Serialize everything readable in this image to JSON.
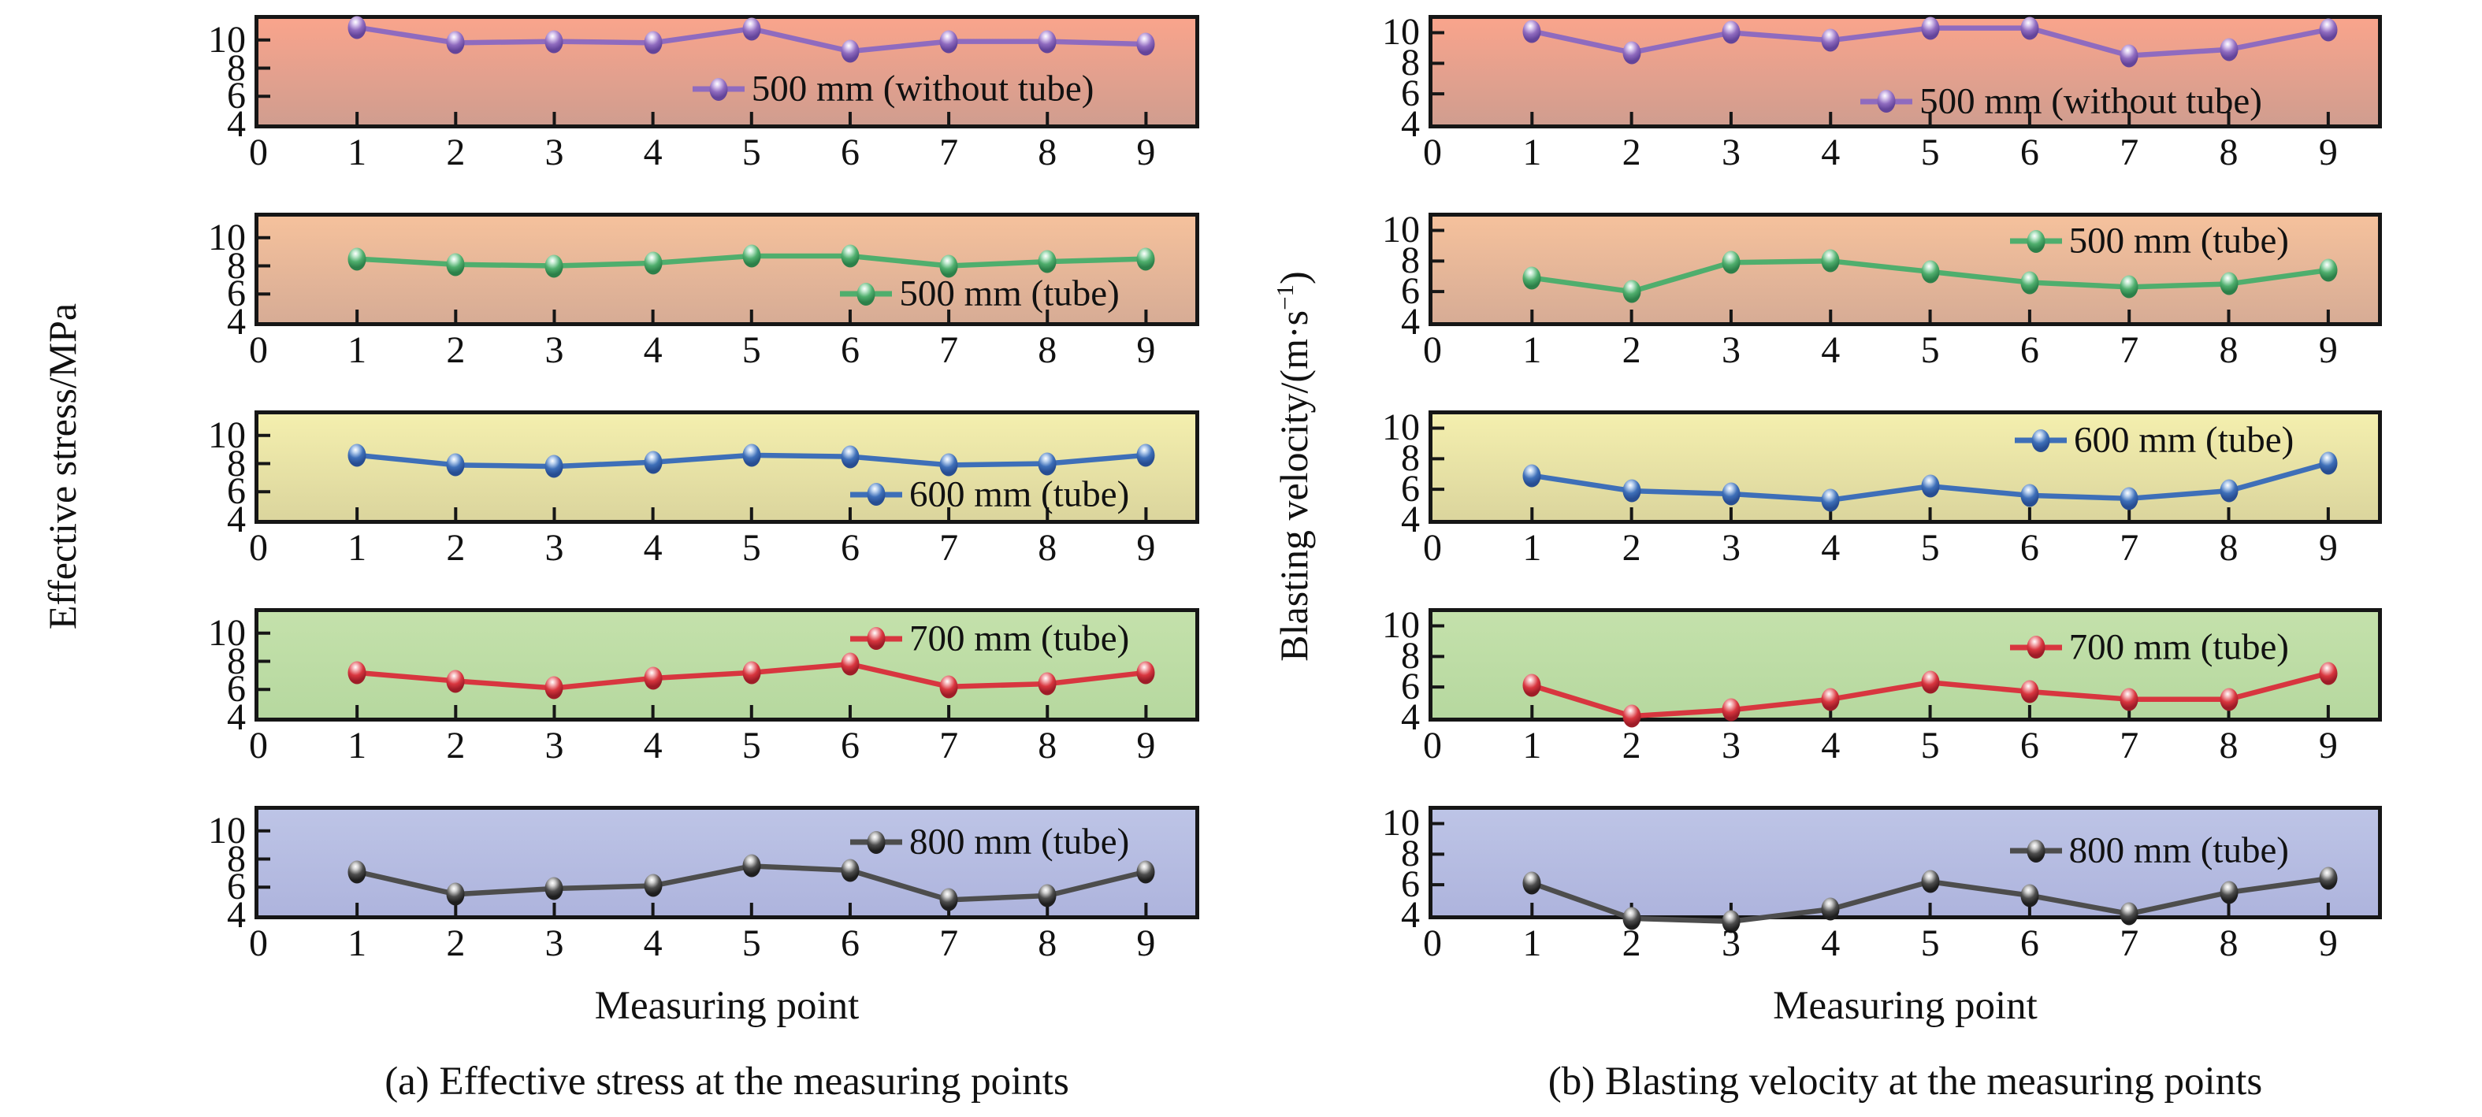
{
  "figure": {
    "columns": [
      {
        "key": "a",
        "ylabel_pre": "Effective stress/MPa",
        "ylabel_sup": "",
        "ylabel_post": "",
        "xlabel": "Measuring point",
        "caption": "(a) Effective stress at the measuring points"
      },
      {
        "key": "b",
        "ylabel_pre": "Blasting velocity/(m·s",
        "ylabel_sup": "−1",
        "ylabel_post": ")",
        "xlabel": "Measuring point",
        "caption": "(b) Blasting velocity at the measuring points"
      }
    ]
  },
  "chart_data": [
    {
      "panel": "a1",
      "type": "line",
      "legend": "500 mm (without tube)",
      "line_color": "#8f6bbf",
      "marker_light": "#dccbf0",
      "marker_dark": "#63449a",
      "bg_top": "#f9a48c",
      "bg_bottom": "#d09d8f",
      "x": [
        1,
        2,
        3,
        4,
        5,
        6,
        7,
        8,
        9
      ],
      "y": [
        10.9,
        9.8,
        9.9,
        9.8,
        10.8,
        9.2,
        9.9,
        9.9,
        9.7
      ],
      "xlim": [
        0,
        9.5
      ],
      "ylim": [
        4,
        11.5
      ],
      "xticks": [
        0,
        1,
        2,
        3,
        4,
        5,
        6,
        7,
        8,
        9
      ],
      "yticks": [
        4,
        6,
        8,
        10
      ],
      "legend_x": 4.4,
      "legend_y": 6.5,
      "xlabel": "Measuring point",
      "ylabel": "Effective stress/MPa",
      "grid": false
    },
    {
      "panel": "a2",
      "type": "line",
      "legend": "500 mm (tube)",
      "line_color": "#4fae6d",
      "marker_light": "#c2ead0",
      "marker_dark": "#2c8049",
      "bg_top": "#f5c19c",
      "bg_bottom": "#d7ac95",
      "x": [
        1,
        2,
        3,
        4,
        5,
        6,
        7,
        8,
        9
      ],
      "y": [
        8.5,
        8.1,
        8.0,
        8.2,
        8.7,
        8.7,
        8.0,
        8.3,
        8.5
      ],
      "xlim": [
        0,
        9.5
      ],
      "ylim": [
        4,
        11.5
      ],
      "xticks": [
        0,
        1,
        2,
        3,
        4,
        5,
        6,
        7,
        8,
        9
      ],
      "yticks": [
        4,
        6,
        8,
        10
      ],
      "legend_x": 5.9,
      "legend_y": 6.0,
      "xlabel": "Measuring point",
      "ylabel": "Effective stress/MPa",
      "grid": false
    },
    {
      "panel": "a3",
      "type": "line",
      "legend": "600 mm (tube)",
      "line_color": "#3e6fb8",
      "marker_light": "#bcd3f0",
      "marker_dark": "#274d92",
      "bg_top": "#f4efae",
      "bg_bottom": "#dbd59d",
      "x": [
        1,
        2,
        3,
        4,
        5,
        6,
        7,
        8,
        9
      ],
      "y": [
        8.6,
        7.9,
        7.8,
        8.1,
        8.6,
        8.5,
        7.9,
        8.0,
        8.6
      ],
      "xlim": [
        0,
        9.5
      ],
      "ylim": [
        4,
        11.5
      ],
      "xticks": [
        0,
        1,
        2,
        3,
        4,
        5,
        6,
        7,
        8,
        9
      ],
      "yticks": [
        4,
        6,
        8,
        10
      ],
      "legend_x": 6.0,
      "legend_y": 5.8,
      "xlabel": "Measuring point",
      "ylabel": "Effective stress/MPa",
      "grid": false
    },
    {
      "panel": "a4",
      "type": "line",
      "legend": "700 mm (tube)",
      "line_color": "#d8363f",
      "marker_light": "#f6b7ba",
      "marker_dark": "#9e1c27",
      "bg_top": "#c4e1ab",
      "bg_bottom": "#b6d89f",
      "x": [
        1,
        2,
        3,
        4,
        5,
        6,
        7,
        8,
        9
      ],
      "y": [
        7.2,
        6.6,
        6.1,
        6.8,
        7.2,
        7.8,
        6.2,
        6.4,
        7.2
      ],
      "xlim": [
        0,
        9.5
      ],
      "ylim": [
        4,
        11.5
      ],
      "xticks": [
        0,
        1,
        2,
        3,
        4,
        5,
        6,
        7,
        8,
        9
      ],
      "yticks": [
        4,
        6,
        8,
        10
      ],
      "legend_x": 6.0,
      "legend_y": 9.6,
      "xlabel": "Measuring point",
      "ylabel": "Effective stress/MPa",
      "grid": false
    },
    {
      "panel": "a5",
      "type": "line",
      "legend": "800 mm (tube)",
      "line_color": "#4d4d4d",
      "marker_light": "#d2d2d2",
      "marker_dark": "#1e1e1e",
      "bg_top": "#bdc4e6",
      "bg_bottom": "#aeb4dd",
      "x": [
        1,
        2,
        3,
        4,
        5,
        6,
        7,
        8,
        9
      ],
      "y": [
        7.1,
        5.5,
        5.9,
        6.1,
        7.5,
        7.2,
        5.1,
        5.4,
        7.1
      ],
      "xlim": [
        0,
        9.5
      ],
      "ylim": [
        4,
        11.5
      ],
      "xticks": [
        0,
        1,
        2,
        3,
        4,
        5,
        6,
        7,
        8,
        9
      ],
      "yticks": [
        4,
        6,
        8,
        10
      ],
      "legend_x": 6.0,
      "legend_y": 9.2,
      "xlabel": "Measuring point",
      "ylabel": "Effective stress/MPa",
      "grid": false
    },
    {
      "panel": "b1",
      "type": "line",
      "legend": "500 mm (without tube)",
      "line_color": "#8f6bbf",
      "marker_light": "#dccbf0",
      "marker_dark": "#63449a",
      "bg_top": "#f9a48c",
      "bg_bottom": "#d09d8f",
      "x": [
        1,
        2,
        3,
        4,
        5,
        6,
        7,
        8,
        9
      ],
      "y": [
        10.1,
        8.7,
        10.0,
        9.5,
        10.3,
        10.3,
        8.5,
        8.9,
        10.2
      ],
      "xlim": [
        0,
        9.5
      ],
      "ylim": [
        4,
        10.9
      ],
      "xticks": [
        0,
        1,
        2,
        3,
        4,
        5,
        6,
        7,
        8,
        9
      ],
      "yticks": [
        4,
        6,
        8,
        10
      ],
      "legend_x": 4.3,
      "legend_y": 5.5,
      "xlabel": "Measuring point",
      "ylabel": "Blasting velocity/(m·s−1)",
      "grid": false
    },
    {
      "panel": "b2",
      "type": "line",
      "legend": "500 mm (tube)",
      "line_color": "#4fae6d",
      "marker_light": "#c2ead0",
      "marker_dark": "#2c8049",
      "bg_top": "#f5c19c",
      "bg_bottom": "#d7ac95",
      "x": [
        1,
        2,
        3,
        4,
        5,
        6,
        7,
        8,
        9
      ],
      "y": [
        6.9,
        6.0,
        7.9,
        8.0,
        7.3,
        6.6,
        6.3,
        6.5,
        7.4
      ],
      "xlim": [
        0,
        9.5
      ],
      "ylim": [
        4,
        10.9
      ],
      "xticks": [
        0,
        1,
        2,
        3,
        4,
        5,
        6,
        7,
        8,
        9
      ],
      "yticks": [
        4,
        6,
        8,
        10
      ],
      "legend_x": 5.8,
      "legend_y": 9.3,
      "xlabel": "Measuring point",
      "ylabel": "Blasting velocity/(m·s−1)",
      "grid": false
    },
    {
      "panel": "b3",
      "type": "line",
      "legend": "600 mm (tube)",
      "line_color": "#3e6fb8",
      "marker_light": "#bcd3f0",
      "marker_dark": "#274d92",
      "bg_top": "#f4efae",
      "bg_bottom": "#dbd59d",
      "x": [
        1,
        2,
        3,
        4,
        5,
        6,
        7,
        8,
        9
      ],
      "y": [
        6.9,
        5.9,
        5.7,
        5.3,
        6.2,
        5.6,
        5.4,
        5.9,
        7.7
      ],
      "xlim": [
        0,
        9.5
      ],
      "ylim": [
        4,
        10.9
      ],
      "xticks": [
        0,
        1,
        2,
        3,
        4,
        5,
        6,
        7,
        8,
        9
      ],
      "yticks": [
        4,
        6,
        8,
        10
      ],
      "legend_x": 5.85,
      "legend_y": 9.2,
      "xlabel": "Measuring point",
      "ylabel": "Blasting velocity/(m·s−1)",
      "grid": false
    },
    {
      "panel": "b4",
      "type": "line",
      "legend": "700 mm (tube)",
      "line_color": "#d8363f",
      "marker_light": "#f6b7ba",
      "marker_dark": "#9e1c27",
      "bg_top": "#c4e1ab",
      "bg_bottom": "#b6d89f",
      "x": [
        1,
        2,
        3,
        4,
        5,
        6,
        7,
        8,
        9
      ],
      "y": [
        6.1,
        4.1,
        4.5,
        5.2,
        6.3,
        5.7,
        5.2,
        5.2,
        6.9
      ],
      "xlim": [
        0,
        9.5
      ],
      "ylim": [
        4,
        10.9
      ],
      "xticks": [
        0,
        1,
        2,
        3,
        4,
        5,
        6,
        7,
        8,
        9
      ],
      "yticks": [
        4,
        6,
        8,
        10
      ],
      "legend_x": 5.8,
      "legend_y": 8.6,
      "xlabel": "Measuring point",
      "ylabel": "Blasting velocity/(m·s−1)",
      "grid": false
    },
    {
      "panel": "b5",
      "type": "line",
      "legend": "800 mm (tube)",
      "line_color": "#4d4d4d",
      "marker_light": "#d2d2d2",
      "marker_dark": "#1e1e1e",
      "bg_top": "#bdc4e6",
      "bg_bottom": "#aeb4dd",
      "x": [
        1,
        2,
        3,
        4,
        5,
        6,
        7,
        8,
        9
      ],
      "y": [
        6.1,
        3.8,
        3.6,
        4.4,
        6.2,
        5.3,
        4.1,
        5.5,
        6.4
      ],
      "xlim": [
        0,
        9.5
      ],
      "ylim": [
        4,
        10.9
      ],
      "xticks": [
        0,
        1,
        2,
        3,
        4,
        5,
        6,
        7,
        8,
        9
      ],
      "yticks": [
        4,
        6,
        8,
        10
      ],
      "legend_x": 5.8,
      "legend_y": 8.2,
      "xlabel": "Measuring point",
      "ylabel": "Blasting velocity/(m·s−1)",
      "grid": false
    }
  ]
}
